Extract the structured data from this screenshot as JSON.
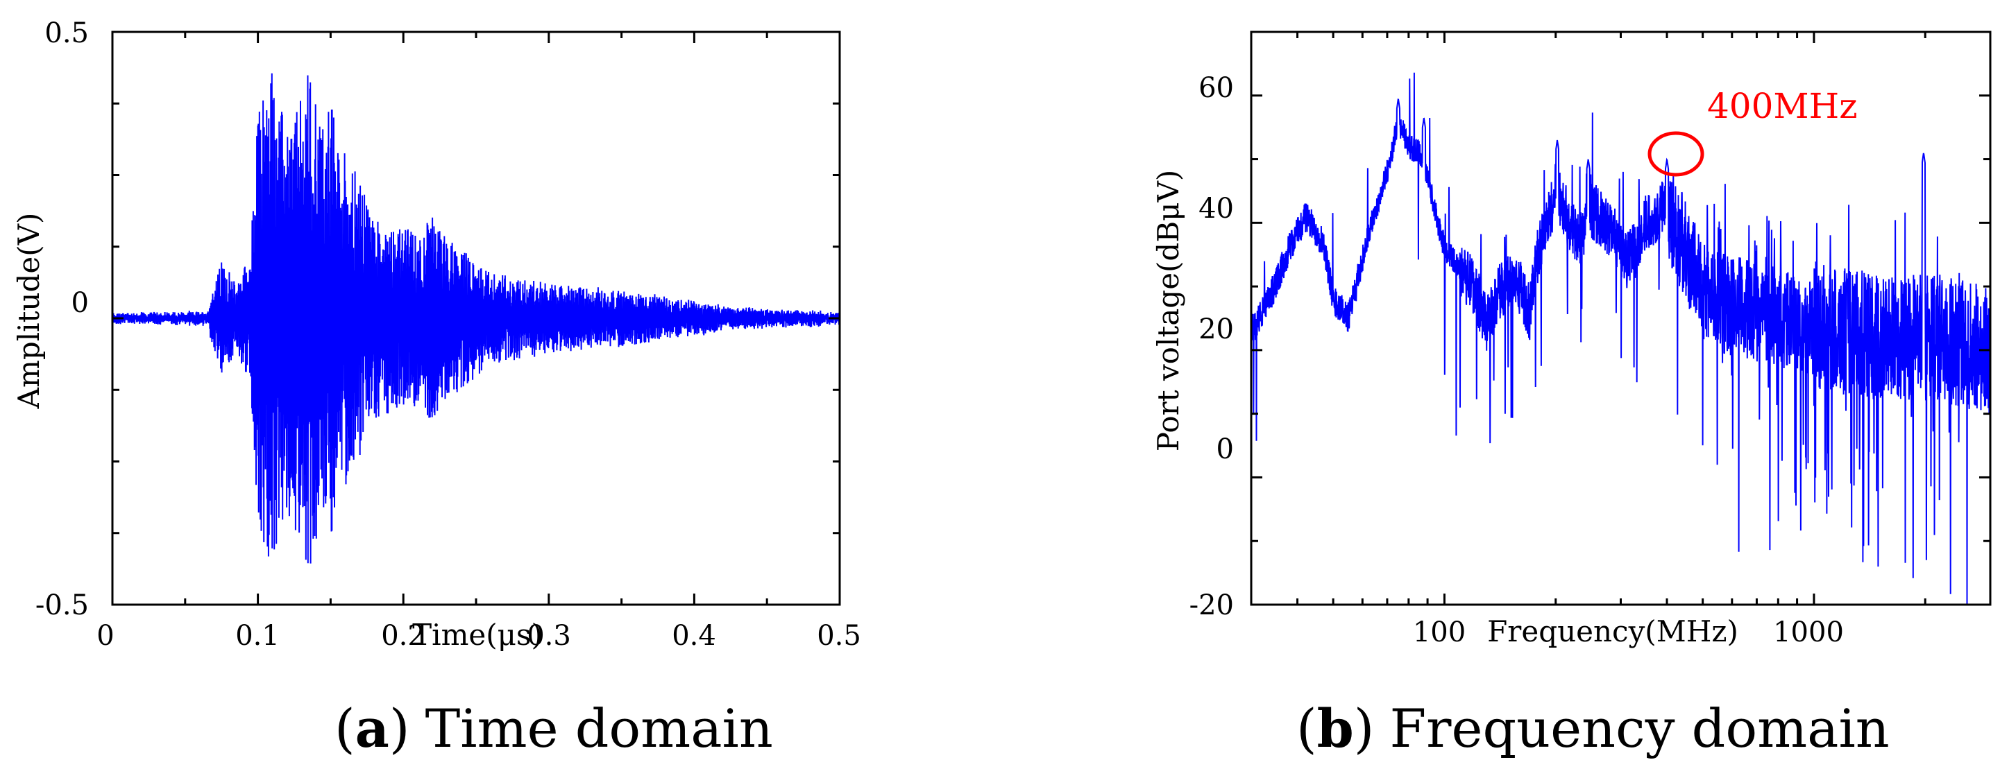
{
  "chart_data": [
    {
      "type": "line",
      "caption": {
        "letter": "a",
        "text": "Time domain",
        "open": "(",
        "close": ")"
      },
      "xlabel": "Time(μs)",
      "ylabel": "Amplitude(V)",
      "xlim": [
        0,
        0.5
      ],
      "ylim": [
        -0.5,
        0.5
      ],
      "xticks": [
        0,
        0.1,
        0.2,
        0.3,
        0.4,
        0.5
      ],
      "xtick_labels": [
        "0",
        "0.1",
        "0.2",
        "0.3",
        "0.4",
        "0.5"
      ],
      "yticks": [
        -0.5,
        0,
        0.5
      ],
      "ytick_labels": [
        "-0.5",
        "0",
        "0.5"
      ],
      "grid": false,
      "series_color": "#0000ff",
      "envelope": {
        "t": [
          0.0,
          0.065,
          0.07,
          0.075,
          0.085,
          0.095,
          0.1,
          0.105,
          0.11,
          0.115,
          0.12,
          0.125,
          0.13,
          0.135,
          0.14,
          0.145,
          0.15,
          0.155,
          0.16,
          0.17,
          0.18,
          0.19,
          0.2,
          0.21,
          0.22,
          0.23,
          0.24,
          0.26,
          0.28,
          0.3,
          0.32,
          0.34,
          0.36,
          0.38,
          0.4,
          0.42,
          0.45,
          0.5
        ],
        "amp": [
          0.008,
          0.01,
          0.06,
          0.1,
          0.06,
          0.12,
          0.36,
          0.42,
          0.46,
          0.38,
          0.33,
          0.37,
          0.38,
          0.45,
          0.4,
          0.34,
          0.4,
          0.3,
          0.3,
          0.24,
          0.18,
          0.17,
          0.16,
          0.15,
          0.18,
          0.14,
          0.12,
          0.08,
          0.07,
          0.06,
          0.055,
          0.05,
          0.045,
          0.035,
          0.03,
          0.02,
          0.015,
          0.01
        ]
      },
      "series": [
        {
          "name": "Amplitude",
          "x": "t",
          "y": "amplitude"
        }
      ]
    },
    {
      "type": "line",
      "caption": {
        "letter": "b",
        "text": "Frequency domain",
        "open": "(",
        "close": ")"
      },
      "xlabel": "Frequency(MHz)",
      "ylabel": "Port voltage(dBμV)",
      "xscale": "log",
      "xlim": [
        30,
        3000
      ],
      "ylim": [
        -20,
        70
      ],
      "xticks": [
        100,
        1000
      ],
      "xtick_labels": [
        "100",
        "1000"
      ],
      "yticks": [
        -20,
        0,
        20,
        40,
        60
      ],
      "ytick_labels": [
        "-20",
        "0",
        "20",
        "40",
        "60"
      ],
      "grid": false,
      "series_color": "#0000ff",
      "baseline": {
        "f": [
          30,
          33,
          38,
          42,
          47,
          50,
          55,
          62,
          70,
          75,
          80,
          86,
          90,
          95,
          100,
          110,
          120,
          130,
          140,
          150,
          160,
          170,
          180,
          190,
          200,
          215,
          230,
          250,
          270,
          290,
          310,
          330,
          350,
          370,
          400,
          430,
          470,
          520,
          600,
          700,
          800,
          900,
          1000,
          1200,
          1500,
          2000,
          2500,
          3000
        ],
        "level": [
          23,
          27,
          36,
          41,
          37,
          28,
          25,
          38,
          48,
          56,
          52,
          51,
          47,
          41,
          36,
          33,
          30,
          24,
          29,
          31,
          30,
          26,
          36,
          40,
          45,
          41,
          37,
          42,
          40,
          38,
          34,
          36,
          40,
          41,
          43,
          38,
          33,
          28,
          27,
          26,
          25,
          24,
          24,
          23,
          22,
          22,
          21,
          20
        ]
      },
      "peaks": [
        {
          "f": 75,
          "v": 59.5
        },
        {
          "f": 88,
          "v": 56.5
        },
        {
          "f": 202,
          "v": 53
        },
        {
          "f": 245,
          "v": 50
        },
        {
          "f": 400,
          "v": 50
        },
        {
          "f": 1980,
          "v": 51
        }
      ],
      "annotation": {
        "label": "400MHz",
        "f": 400,
        "v": 48.5,
        "color": "#ff0000"
      },
      "series": [
        {
          "name": "Port voltage",
          "x": "f",
          "y": "voltage"
        }
      ]
    }
  ]
}
